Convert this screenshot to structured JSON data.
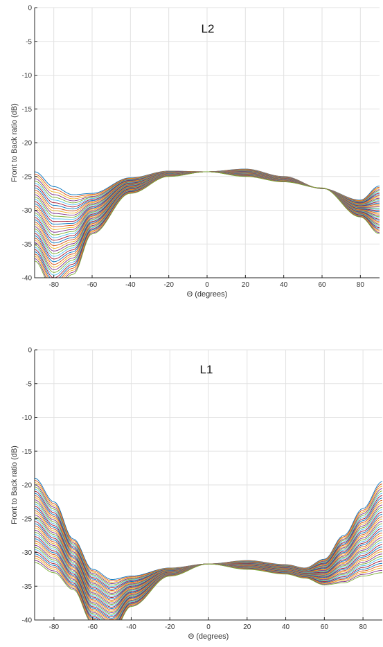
{
  "chart_data": [
    {
      "type": "line",
      "title": "L2",
      "xlabel": "Θ (degrees)",
      "ylabel": "Front to Back ratio (dB)",
      "xlim": [
        -90,
        90
      ],
      "ylim": [
        -40,
        0
      ],
      "xticks": [
        -80,
        -60,
        -40,
        -20,
        0,
        20,
        40,
        60,
        80
      ],
      "yticks": [
        0,
        -5,
        -10,
        -15,
        -20,
        -25,
        -30,
        -35,
        -40
      ],
      "grid": true,
      "series_count": 40,
      "envelope_first": {
        "x": [
          -90,
          -80,
          -70,
          -60,
          -40,
          -20,
          0,
          20,
          40,
          60,
          80,
          90
        ],
        "y": [
          -24.3,
          -26.5,
          -27.7,
          -27.5,
          -25.2,
          -24.2,
          -24.3,
          -23.9,
          -25.0,
          -26.8,
          -28.5,
          -26.4
        ]
      },
      "envelope_last": {
        "x": [
          -90,
          -80,
          -70,
          -60,
          -40,
          -20,
          0,
          20,
          40,
          60,
          80,
          90
        ],
        "y": [
          -37.5,
          -42.0,
          -39.5,
          -33.5,
          -27.5,
          -25.0,
          -24.3,
          -25.0,
          -25.8,
          -26.7,
          -31.0,
          -33.5
        ]
      },
      "colors": [
        "#0072BD",
        "#D95319",
        "#EDB120",
        "#7E2F8E",
        "#77AC30",
        "#4DBEEE",
        "#A2142F"
      ]
    },
    {
      "type": "line",
      "title": "L1",
      "xlabel": "Θ (degrees)",
      "ylabel": "Front to Back ratio (dB)",
      "xlim": [
        -90,
        90
      ],
      "ylim": [
        -40,
        0
      ],
      "xticks": [
        -80,
        -60,
        -40,
        -20,
        0,
        20,
        40,
        60,
        80
      ],
      "yticks": [
        0,
        -5,
        -10,
        -15,
        -20,
        -25,
        -30,
        -35,
        -40
      ],
      "grid": true,
      "series_count": 40,
      "envelope_first": {
        "x": [
          -90,
          -80,
          -70,
          -60,
          -50,
          -40,
          -20,
          0,
          20,
          40,
          50,
          60,
          70,
          80,
          90
        ],
        "y": [
          -19.0,
          -22.5,
          -28.0,
          -32.5,
          -34.0,
          -33.5,
          -32.3,
          -31.7,
          -31.2,
          -31.8,
          -32.3,
          -31.0,
          -27.5,
          -23.5,
          -19.5
        ]
      },
      "envelope_last": {
        "x": [
          -90,
          -80,
          -70,
          -60,
          -50,
          -40,
          -20,
          0,
          20,
          40,
          50,
          60,
          70,
          80,
          90
        ],
        "y": [
          -31.5,
          -33.0,
          -35.5,
          -40.5,
          -42.0,
          -38.0,
          -33.5,
          -31.7,
          -32.5,
          -33.2,
          -33.8,
          -34.8,
          -34.5,
          -33.5,
          -33.0
        ]
      },
      "colors": [
        "#0072BD",
        "#D95319",
        "#EDB120",
        "#7E2F8E",
        "#77AC30",
        "#4DBEEE",
        "#A2142F"
      ]
    }
  ]
}
